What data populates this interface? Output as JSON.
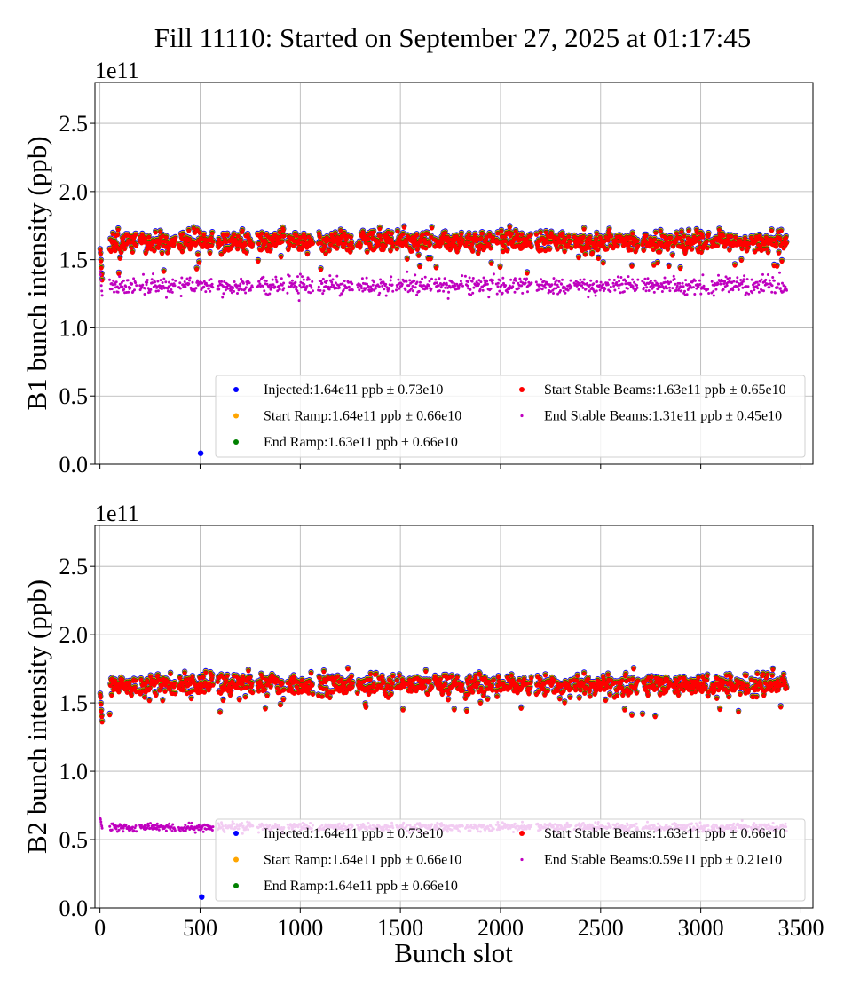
{
  "chart_data": {
    "type": "scatter",
    "title": "Fill 11110: Started on September 27, 2025 at 01:17:45",
    "xlabel": "Bunch slot",
    "xlim": [
      -25,
      3560
    ],
    "xticks": [
      0,
      500,
      1000,
      1500,
      2000,
      2500,
      3000,
      3500
    ],
    "grid": true,
    "trains": [
      [
        49,
        181
      ],
      [
        199,
        376
      ],
      [
        393,
        566
      ],
      [
        588,
        764
      ],
      [
        787,
        919
      ],
      [
        937,
        1065
      ],
      [
        1091,
        1264
      ],
      [
        1286,
        1463
      ],
      [
        1480,
        1657
      ],
      [
        1670,
        1812
      ],
      [
        1825,
        1966
      ],
      [
        1980,
        2156
      ],
      [
        2179,
        2355
      ],
      [
        2369,
        2554
      ],
      [
        2563,
        2687
      ],
      [
        2709,
        2850
      ],
      [
        2859,
        3040
      ],
      [
        3053,
        3239
      ],
      [
        3252,
        3429
      ]
    ],
    "leading_bunch_slots": [
      1,
      3,
      5,
      7,
      9,
      11
    ],
    "subplots": [
      {
        "ylabel": "B1 bunch intensity (ppb)",
        "offset_label": "1e11",
        "ylim": [
          0,
          2.8
        ],
        "yticks": [
          "0.0",
          "0.5",
          "1.0",
          "1.5",
          "2.0",
          "2.5"
        ],
        "legend_position": "lower-right",
        "leading_bunch_values": [
          1.58,
          1.55,
          1.5,
          1.45,
          1.4,
          1.36
        ],
        "outlier": {
          "series": "Injected",
          "slot": 503,
          "value": 0.08
        },
        "series": [
          {
            "name": "Injected",
            "label": "Injected:1.64e11 ppb ± 0.73e10",
            "color": "#0000ff",
            "mean": 1.64,
            "std": 0.073
          },
          {
            "name": "Start Ramp",
            "label": "Start Ramp:1.64e11 ppb ± 0.66e10",
            "color": "#ffa500",
            "mean": 1.64,
            "std": 0.066
          },
          {
            "name": "End Ramp",
            "label": "End Ramp:1.63e11 ppb ± 0.66e10",
            "color": "#008000",
            "mean": 1.63,
            "std": 0.066
          },
          {
            "name": "Start Stable Beams",
            "label": "Start Stable Beams:1.63e11 ppb ± 0.65e10",
            "color": "#ff0000",
            "mean": 1.63,
            "std": 0.065
          },
          {
            "name": "End Stable Beams",
            "label": "End Stable Beams:1.31e11 ppb ± 0.45e10",
            "color": "#bf00bf",
            "mean": 1.31,
            "std": 0.045
          }
        ]
      },
      {
        "ylabel": "B2 bunch intensity (ppb)",
        "offset_label": "1e11",
        "ylim": [
          0,
          2.8
        ],
        "yticks": [
          "0.0",
          "0.5",
          "1.0",
          "1.5",
          "2.0",
          "2.5"
        ],
        "xticklabels": [
          "0",
          "500",
          "1000",
          "1500",
          "2000",
          "2500",
          "3000",
          "3500"
        ],
        "legend_position": "lower-right",
        "leading_bunch_values": [
          1.57,
          1.55,
          1.5,
          1.45,
          1.41,
          1.37
        ],
        "outlier": {
          "series": "Injected",
          "slot": 508,
          "value": 0.08
        },
        "series": [
          {
            "name": "Injected",
            "label": "Injected:1.64e11 ppb ± 0.73e10",
            "color": "#0000ff",
            "mean": 1.64,
            "std": 0.073
          },
          {
            "name": "Start Ramp",
            "label": "Start Ramp:1.64e11 ppb ± 0.66e10",
            "color": "#ffa500",
            "mean": 1.64,
            "std": 0.066
          },
          {
            "name": "End Ramp",
            "label": "End Ramp:1.64e11 ppb ± 0.66e10",
            "color": "#008000",
            "mean": 1.64,
            "std": 0.066
          },
          {
            "name": "Start Stable Beams",
            "label": "Start Stable Beams:1.63e11 ppb ± 0.66e10",
            "color": "#ff0000",
            "mean": 1.63,
            "std": 0.066
          },
          {
            "name": "End Stable Beams",
            "label": "End Stable Beams:0.59e11 ppb ± 0.21e10",
            "color": "#bf00bf",
            "mean": 0.59,
            "std": 0.021
          }
        ]
      }
    ]
  }
}
